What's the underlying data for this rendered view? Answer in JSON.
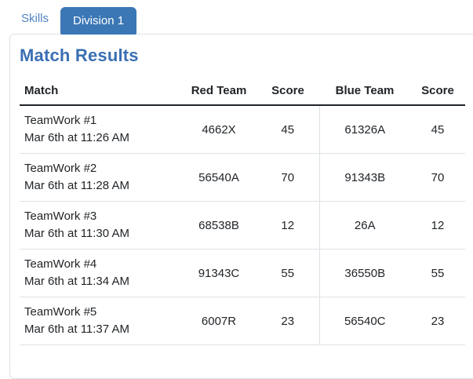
{
  "tabs": {
    "skills_label": "Skills",
    "division_label": "Division 1"
  },
  "panel": {
    "title": "Match Results",
    "table": {
      "headers": [
        "Match",
        "Red Team",
        "Score",
        "Blue Team",
        "Score"
      ],
      "rows": [
        {
          "match": "TeamWork #1",
          "time": "Mar 6th at 11:26 AM",
          "red_team": "4662X",
          "red_score": "45",
          "blue_team": "61326A",
          "blue_score": "45"
        },
        {
          "match": "TeamWork #2",
          "time": "Mar 6th at 11:28 AM",
          "red_team": "56540A",
          "red_score": "70",
          "blue_team": "91343B",
          "blue_score": "70"
        },
        {
          "match": "TeamWork #3",
          "time": "Mar 6th at 11:30 AM",
          "red_team": "68538B",
          "red_score": "12",
          "blue_team": "26A",
          "blue_score": "12"
        },
        {
          "match": "TeamWork #4",
          "time": "Mar 6th at 11:34 AM",
          "red_team": "91343C",
          "red_score": "55",
          "blue_team": "36550B",
          "blue_score": "55"
        },
        {
          "match": "TeamWork #5",
          "time": "Mar 6th at 11:37 AM",
          "red_team": "6007R",
          "red_score": "23",
          "blue_team": "56540C",
          "blue_score": "23"
        }
      ]
    }
  },
  "colors": {
    "active_tab_bg": "#3b77b5",
    "active_tab_text": "#ffffff",
    "link": "#4e83c4",
    "heading": "#3a6fb3",
    "header_text": "#212529",
    "body_text": "#212529",
    "row_border": "#dee2e6",
    "card_border": "#dee2e6",
    "header_border": "#212529",
    "bg": "#ffffff"
  }
}
